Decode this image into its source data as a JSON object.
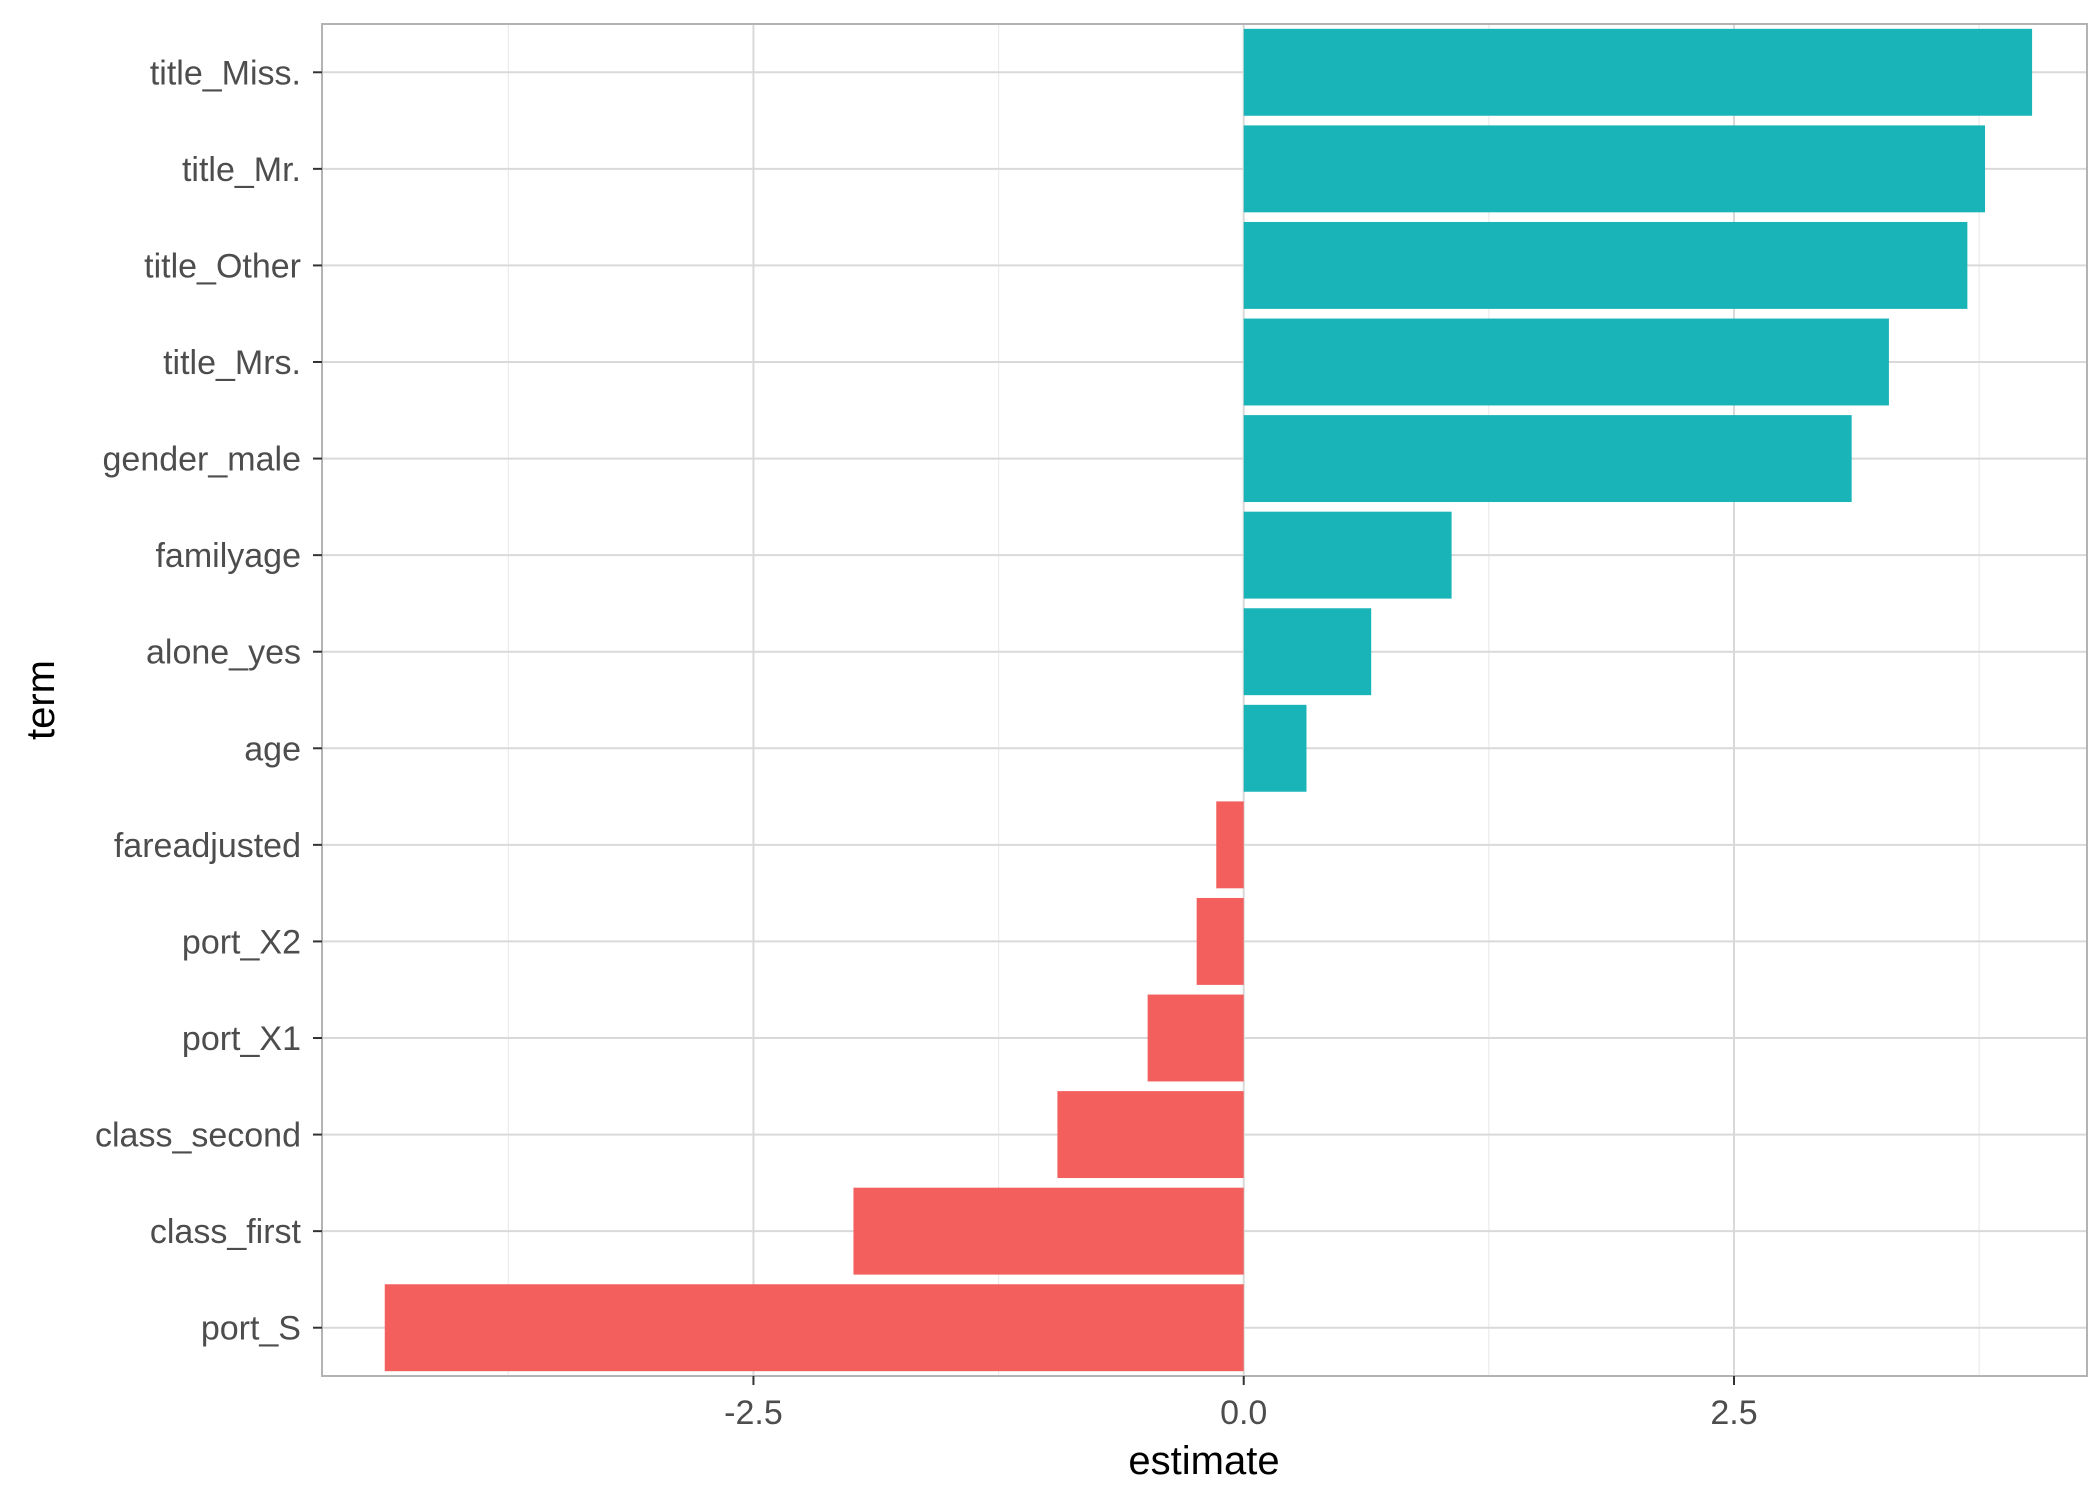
{
  "chart_data": {
    "type": "bar",
    "orientation": "horizontal",
    "title": "",
    "xlabel": "estimate",
    "ylabel": "term",
    "xlim": [
      -4.7,
      4.3
    ],
    "x_ticks": [
      -2.5,
      0.0,
      2.5
    ],
    "x_tick_labels": [
      "-2.5",
      "0.0",
      "2.5"
    ],
    "grid": true,
    "legend": "none",
    "colors": {
      "positive": "#19B4B8",
      "negative": "#F25F5C"
    },
    "categories": [
      "title_Miss.",
      "title_Mr.",
      "title_Other",
      "title_Mrs.",
      "gender_male",
      "familyage",
      "alone_yes",
      "age",
      "fareadjusted",
      "port_X2",
      "port_X1",
      "class_second",
      "class_first",
      "port_S"
    ],
    "values": [
      4.02,
      3.78,
      3.69,
      3.29,
      3.1,
      1.06,
      0.65,
      0.32,
      -0.14,
      -0.24,
      -0.49,
      -0.95,
      -1.99,
      -4.38
    ]
  }
}
